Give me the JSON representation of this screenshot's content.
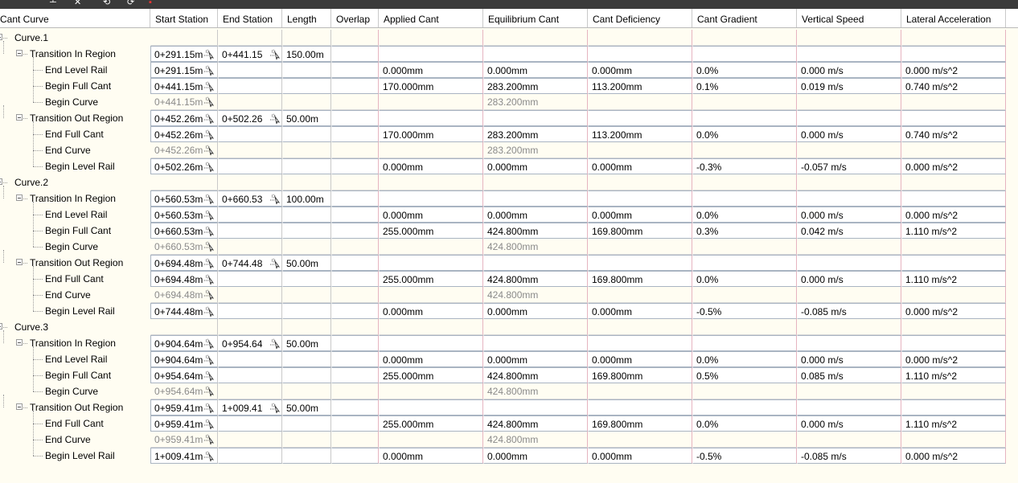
{
  "columns": [
    {
      "key": "name",
      "label": "Cant Curve"
    },
    {
      "key": "start",
      "label": "Start Station"
    },
    {
      "key": "end",
      "label": "End Station"
    },
    {
      "key": "length",
      "label": "Length"
    },
    {
      "key": "overlap",
      "label": "Overlap"
    },
    {
      "key": "applied",
      "label": "Applied Cant"
    },
    {
      "key": "equilibrium",
      "label": "Equilibrium Cant"
    },
    {
      "key": "deficiency",
      "label": "Cant Deficiency"
    },
    {
      "key": "gradient",
      "label": "Cant Gradient"
    },
    {
      "key": "vspeed",
      "label": "Vertical Speed"
    },
    {
      "key": "lateral",
      "label": "Lateral Acceleration"
    }
  ],
  "rows": [
    {
      "level": 0,
      "name": "Curve.1"
    },
    {
      "level": 1,
      "name": "Transition In Region",
      "start": "0+291.15m",
      "end": "0+441.15",
      "length": "150.00m"
    },
    {
      "level": 2,
      "name": "End Level Rail",
      "start": "0+291.15m",
      "applied": "0.000mm",
      "equilibrium": "0.000mm",
      "deficiency": "0.000mm",
      "gradient": "0.0%",
      "vspeed": "0.000 m/s",
      "lateral": "0.000 m/s^2"
    },
    {
      "level": 2,
      "name": "Begin Full Cant",
      "start": "0+441.15m",
      "applied": "170.000mm",
      "equilibrium": "283.200mm",
      "deficiency": "113.200mm",
      "gradient": "0.1%",
      "vspeed": "0.019 m/s",
      "lateral": "0.740 m/s^2"
    },
    {
      "level": 2,
      "name": "Begin Curve",
      "start": "0+441.15m",
      "equilibrium": "283.200mm",
      "readonly": true
    },
    {
      "level": 1,
      "name": "Transition Out Region",
      "start": "0+452.26m",
      "end": "0+502.26",
      "length": "50.00m"
    },
    {
      "level": 2,
      "name": "End Full Cant",
      "start": "0+452.26m",
      "applied": "170.000mm",
      "equilibrium": "283.200mm",
      "deficiency": "113.200mm",
      "gradient": "0.0%",
      "vspeed": "0.000 m/s",
      "lateral": "0.740 m/s^2"
    },
    {
      "level": 2,
      "name": "End Curve",
      "start": "0+452.26m",
      "equilibrium": "283.200mm",
      "readonly": true
    },
    {
      "level": 2,
      "name": "Begin Level Rail",
      "start": "0+502.26m",
      "applied": "0.000mm",
      "equilibrium": "0.000mm",
      "deficiency": "0.000mm",
      "gradient": "-0.3%",
      "vspeed": "-0.057 m/s",
      "lateral": "0.000 m/s^2"
    },
    {
      "level": 0,
      "name": "Curve.2"
    },
    {
      "level": 1,
      "name": "Transition In Region",
      "start": "0+560.53m",
      "end": "0+660.53",
      "length": "100.00m"
    },
    {
      "level": 2,
      "name": "End Level Rail",
      "start": "0+560.53m",
      "applied": "0.000mm",
      "equilibrium": "0.000mm",
      "deficiency": "0.000mm",
      "gradient": "0.0%",
      "vspeed": "0.000 m/s",
      "lateral": "0.000 m/s^2"
    },
    {
      "level": 2,
      "name": "Begin Full Cant",
      "start": "0+660.53m",
      "applied": "255.000mm",
      "equilibrium": "424.800mm",
      "deficiency": "169.800mm",
      "gradient": "0.3%",
      "vspeed": "0.042 m/s",
      "lateral": "1.110 m/s^2"
    },
    {
      "level": 2,
      "name": "Begin Curve",
      "start": "0+660.53m",
      "equilibrium": "424.800mm",
      "readonly": true
    },
    {
      "level": 1,
      "name": "Transition Out Region",
      "start": "0+694.48m",
      "end": "0+744.48",
      "length": "50.00m"
    },
    {
      "level": 2,
      "name": "End Full Cant",
      "start": "0+694.48m",
      "applied": "255.000mm",
      "equilibrium": "424.800mm",
      "deficiency": "169.800mm",
      "gradient": "0.0%",
      "vspeed": "0.000 m/s",
      "lateral": "1.110 m/s^2"
    },
    {
      "level": 2,
      "name": "End Curve",
      "start": "0+694.48m",
      "equilibrium": "424.800mm",
      "readonly": true
    },
    {
      "level": 2,
      "name": "Begin Level Rail",
      "start": "0+744.48m",
      "applied": "0.000mm",
      "equilibrium": "0.000mm",
      "deficiency": "0.000mm",
      "gradient": "-0.5%",
      "vspeed": "-0.085 m/s",
      "lateral": "0.000 m/s^2"
    },
    {
      "level": 0,
      "name": "Curve.3"
    },
    {
      "level": 1,
      "name": "Transition In Region",
      "start": "0+904.64m",
      "end": "0+954.64",
      "length": "50.00m"
    },
    {
      "level": 2,
      "name": "End Level Rail",
      "start": "0+904.64m",
      "applied": "0.000mm",
      "equilibrium": "0.000mm",
      "deficiency": "0.000mm",
      "gradient": "0.0%",
      "vspeed": "0.000 m/s",
      "lateral": "0.000 m/s^2"
    },
    {
      "level": 2,
      "name": "Begin Full Cant",
      "start": "0+954.64m",
      "applied": "255.000mm",
      "equilibrium": "424.800mm",
      "deficiency": "169.800mm",
      "gradient": "0.5%",
      "vspeed": "0.085 m/s",
      "lateral": "1.110 m/s^2"
    },
    {
      "level": 2,
      "name": "Begin Curve",
      "start": "0+954.64m",
      "equilibrium": "424.800mm",
      "readonly": true
    },
    {
      "level": 1,
      "name": "Transition Out Region",
      "start": "0+959.41m",
      "end": "1+009.41",
      "length": "50.00m"
    },
    {
      "level": 2,
      "name": "End Full Cant",
      "start": "0+959.41m",
      "applied": "255.000mm",
      "equilibrium": "424.800mm",
      "deficiency": "169.800mm",
      "gradient": "0.0%",
      "vspeed": "0.000 m/s",
      "lateral": "1.110 m/s^2"
    },
    {
      "level": 2,
      "name": "End Curve",
      "start": "0+959.41m",
      "equilibrium": "424.800mm",
      "readonly": true
    },
    {
      "level": 2,
      "name": "Begin Level Rail",
      "start": "1+009.41m",
      "applied": "0.000mm",
      "equilibrium": "0.000mm",
      "deficiency": "0.000mm",
      "gradient": "-0.5%",
      "vspeed": "-0.085 m/s",
      "lateral": "0.000 m/s^2"
    }
  ],
  "colors": {
    "cream": "#fffdf2",
    "readonly_text": "#8a8a8a",
    "row_border": "#a9b4c2"
  },
  "icons": {
    "pick_station": "station-pick-icon",
    "expander": "tree-collapse-icon"
  }
}
